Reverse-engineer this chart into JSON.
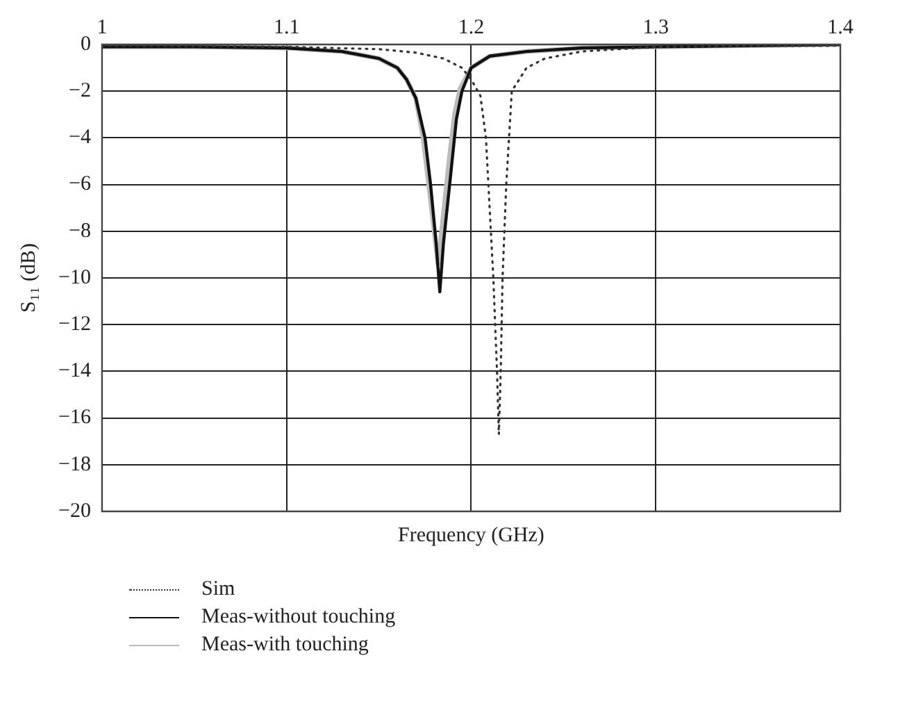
{
  "chart_data": {
    "type": "line",
    "xlabel": "Frequency (GHz)",
    "ylabel": "S₁₁ (dB)",
    "xlim": [
      1,
      1.4
    ],
    "xticks": [
      1,
      1.1,
      1.2,
      1.3,
      1.4
    ],
    "ylim": [
      -20,
      0
    ],
    "yticks": [
      0,
      -2,
      -4,
      -6,
      -8,
      -10,
      -12,
      -14,
      -16,
      -18,
      -20
    ],
    "grid": true,
    "legend": "bottom left",
    "marker": "none",
    "series": [
      {
        "name": "Sim",
        "color": "#333333",
        "line_style": "dotted",
        "x": [
          1,
          1.1,
          1.15,
          1.17,
          1.185,
          1.195,
          1.2,
          1.205,
          1.208,
          1.21,
          1.212,
          1.214,
          1.215,
          1.216,
          1.217,
          1.219,
          1.222,
          1.23,
          1.24,
          1.26,
          1.3,
          1.4
        ],
        "values": [
          -0.05,
          -0.1,
          -0.2,
          -0.35,
          -0.6,
          -1,
          -1.5,
          -2.2,
          -4,
          -7,
          -10,
          -14,
          -16.7,
          -14,
          -10,
          -6,
          -2,
          -1,
          -0.6,
          -0.3,
          -0.1,
          -0.05
        ]
      },
      {
        "name": "Meas-without touching",
        "color": "#111111",
        "line_style": "solid",
        "x": [
          1,
          1.05,
          1.1,
          1.13,
          1.15,
          1.16,
          1.165,
          1.17,
          1.175,
          1.178,
          1.181,
          1.183,
          1.185,
          1.187,
          1.189,
          1.192,
          1.195,
          1.2,
          1.21,
          1.23,
          1.26,
          1.3,
          1.35,
          1.4
        ],
        "values": [
          -0.1,
          -0.1,
          -0.15,
          -0.3,
          -0.6,
          -1,
          -1.5,
          -2.3,
          -4,
          -6,
          -8.5,
          -10.6,
          -8.5,
          -7,
          -5.5,
          -3.2,
          -2,
          -1,
          -0.5,
          -0.3,
          -0.15,
          -0.1,
          -0.05,
          0
        ]
      },
      {
        "name": "Meas-with touching",
        "color": "#bbbbbb",
        "line_style": "solid",
        "x": [
          1,
          1.05,
          1.1,
          1.13,
          1.15,
          1.16,
          1.165,
          1.17,
          1.174,
          1.177,
          1.18,
          1.182,
          1.184,
          1.186,
          1.188,
          1.191,
          1.194,
          1.2,
          1.21,
          1.23,
          1.26,
          1.3,
          1.35,
          1.4
        ],
        "values": [
          -0.1,
          -0.1,
          -0.15,
          -0.3,
          -0.6,
          -1,
          -1.5,
          -2.3,
          -4,
          -6,
          -8,
          -9.4,
          -8,
          -6.5,
          -5,
          -3,
          -1.9,
          -1,
          -0.5,
          -0.3,
          -0.15,
          -0.1,
          -0.05,
          0
        ]
      }
    ]
  }
}
